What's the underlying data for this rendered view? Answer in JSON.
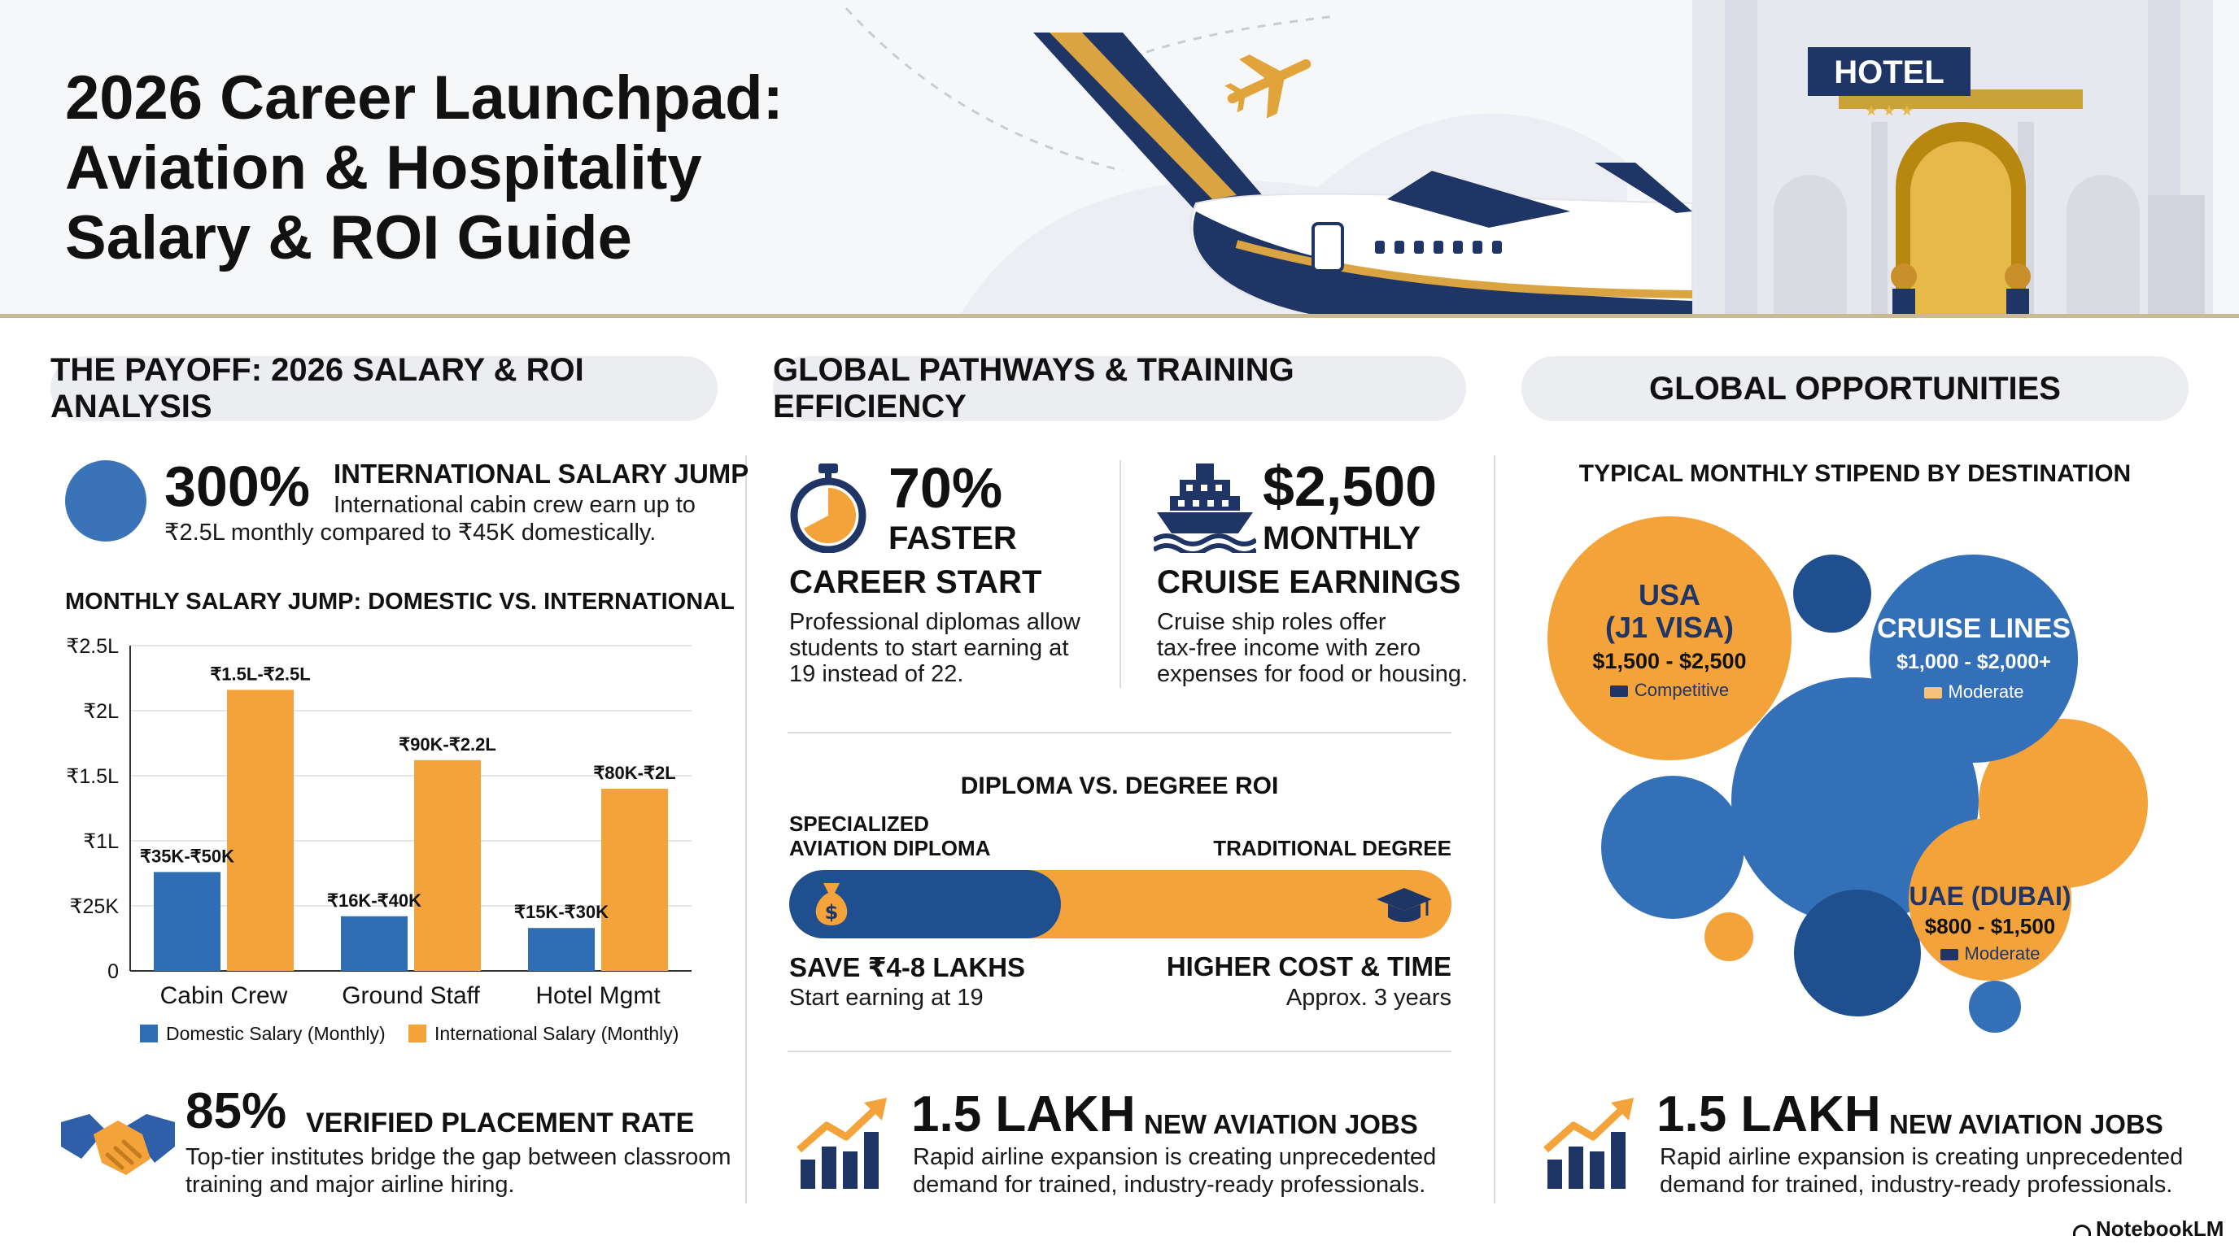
{
  "title_lines": [
    "2026 Career Launchpad:",
    "Aviation & Hospitality",
    "Salary & ROI Guide"
  ],
  "hotel_sign": "HOTEL",
  "hotel_stars": "★ ★ ★",
  "sections": {
    "payoff": "THE PAYOFF: 2026 SALARY & ROI ANALYSIS",
    "pathways": "GLOBAL PATHWAYS & TRAINING EFFICIENCY",
    "opportunities": "GLOBAL OPPORTUNITIES"
  },
  "intl_jump": {
    "value": "300%",
    "label": "INTERNATIONAL SALARY JUMP",
    "desc_lines": [
      "International cabin crew earn up to",
      "₹2.5L monthly compared to ₹45K domestically."
    ]
  },
  "chart_data": {
    "type": "bar",
    "title": "MONTHLY SALARY JUMP: DOMESTIC VS. INTERNATIONAL",
    "categories": [
      "Cabin Crew",
      "Ground Staff",
      "Hotel Mgmt"
    ],
    "y_ticks": [
      "₹2.5L",
      "₹2L",
      "₹1.5L",
      "₹1L",
      "₹25K",
      "0"
    ],
    "ylim": [
      0,
      2.5
    ],
    "series": [
      {
        "name": "Domestic Salary (Monthly)",
        "color": "#2f6db5",
        "values": [
          0.76,
          0.42,
          0.33
        ],
        "labels": [
          "₹35K-₹50K",
          "₹16K-₹40K",
          "₹15K-₹30K"
        ]
      },
      {
        "name": "International Salary (Monthly)",
        "color": "#f4a23a",
        "values": [
          2.16,
          1.62,
          1.4
        ],
        "labels": [
          "₹1.5L-₹2.5L",
          "₹90K-₹2.2L",
          "₹80K-₹2L"
        ]
      }
    ],
    "grid": true,
    "legend_position": "bottom"
  },
  "placement": {
    "value": "85%",
    "label": "VERIFIED PLACEMENT RATE",
    "desc_lines": [
      "Top-tier institutes bridge the gap between classroom",
      "training and major airline hiring."
    ]
  },
  "faster": {
    "value": "70%",
    "sub": "FASTER",
    "label": "CAREER START",
    "desc_lines": [
      "Professional diplomas allow",
      "students to start earning at",
      "19 instead of 22."
    ]
  },
  "cruise": {
    "value": "$2,500",
    "sub": "MONTHLY",
    "label": "CRUISE EARNINGS",
    "desc_lines": [
      "Cruise ship roles offer",
      "tax-free income with zero",
      "expenses for food or housing."
    ]
  },
  "roi": {
    "title": "DIPLOMA VS. DEGREE ROI",
    "left_label_lines": [
      "SPECIALIZED",
      "AVIATION DIPLOMA"
    ],
    "right_label": "TRADITIONAL DEGREE",
    "diploma_share": 0.41,
    "left_head": "SAVE ₹4-8 LAKHS",
    "left_sub": "Start earning at 19",
    "right_head": "HIGHER COST & TIME",
    "right_sub": "Approx. 3 years"
  },
  "jobs": {
    "value": "1.5 LAKH",
    "label": "NEW AVIATION JOBS",
    "desc_lines": [
      "Rapid airline expansion is creating unprecedented",
      "demand for trained, industry-ready professionals."
    ]
  },
  "stipend": {
    "title": "TYPICAL MONTHLY STIPEND BY DESTINATION",
    "destinations": [
      {
        "name_lines": [
          "USA",
          "(J1 VISA)"
        ],
        "range": "$1,500 - $2,500",
        "level": "Competitive"
      },
      {
        "name_lines": [
          "CRUISE LINES"
        ],
        "range": "$1,000 - $2,000+",
        "level": "Moderate"
      },
      {
        "name_lines": [
          "UAE (DUBAI)"
        ],
        "range": "$800 - $1,500",
        "level": "Moderate"
      }
    ]
  },
  "branding": "NotebookLM",
  "colors": {
    "navy": "#1f3566",
    "blue": "#2f6db5",
    "orange": "#f4a23a",
    "gold": "#d9a441"
  }
}
